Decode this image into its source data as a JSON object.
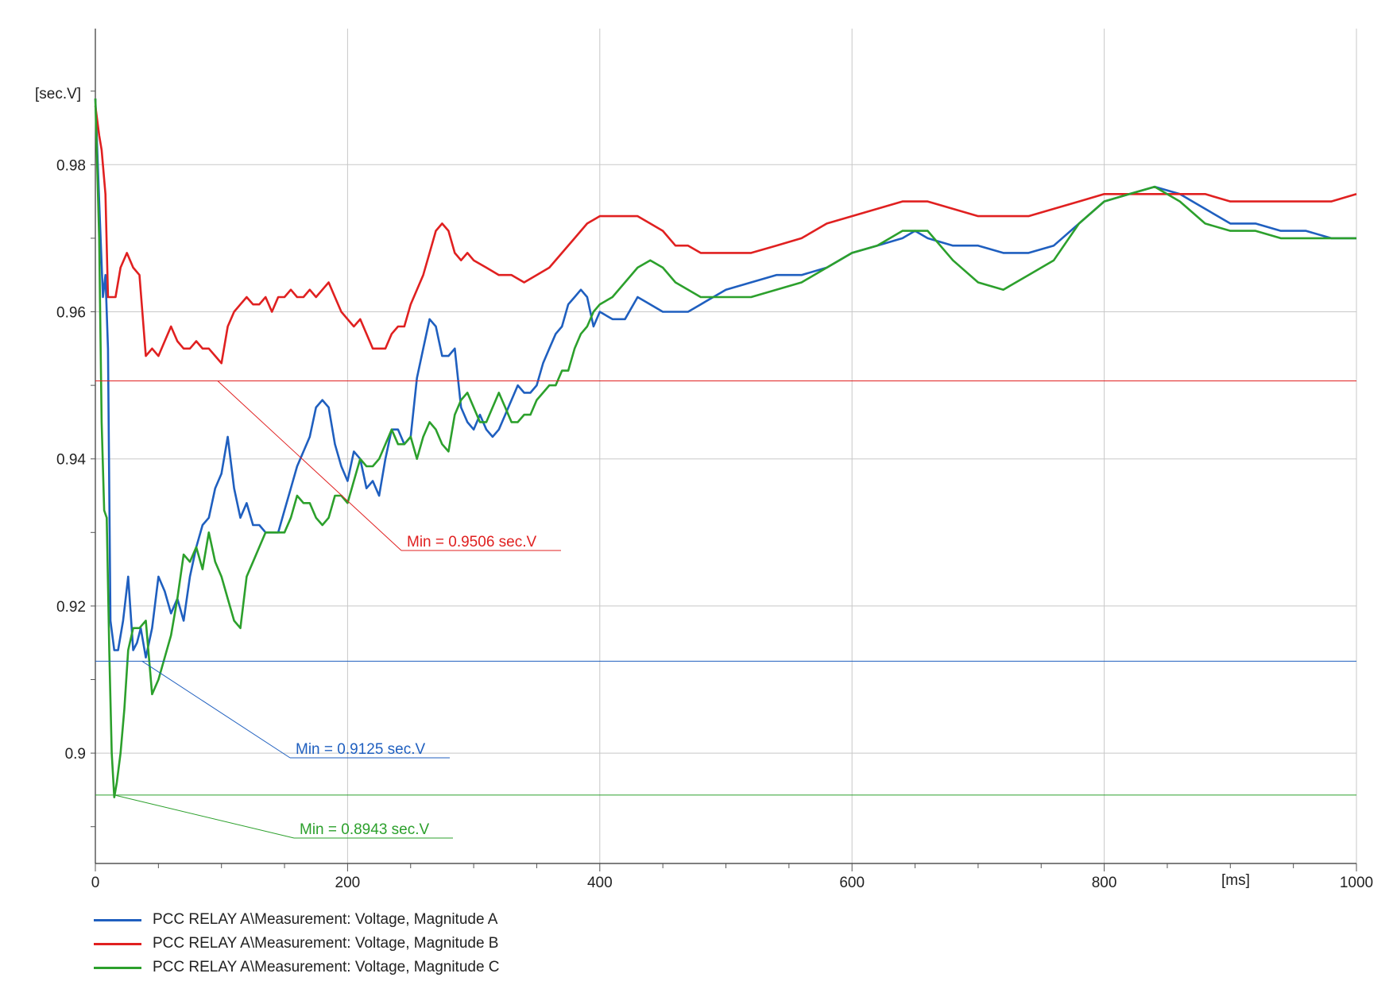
{
  "chart_data": {
    "type": "line",
    "x_unit": "[ms]",
    "y_unit": "[sec.V]",
    "xlim": [
      0,
      1000
    ],
    "ylim": [
      0.885,
      0.9985
    ],
    "x_ticks": [
      0,
      200,
      400,
      600,
      800,
      1000
    ],
    "x_tick_labels": [
      "0",
      "200",
      "400",
      "600",
      "800",
      "1000"
    ],
    "y_ticks": [
      0.9,
      0.92,
      0.94,
      0.96,
      0.98
    ],
    "y_tick_labels": [
      "0.9",
      "0.92",
      "0.94",
      "0.96",
      "0.98"
    ],
    "grid": true,
    "legend_position": "bottom-left",
    "series": [
      {
        "name": "PCC RELAY A\\Measurement: Voltage, Magnitude A",
        "color": "#1f5fbf",
        "x": [
          0,
          3,
          6,
          8,
          10,
          12,
          15,
          18,
          22,
          26,
          30,
          33,
          36,
          40,
          45,
          50,
          55,
          60,
          65,
          70,
          75,
          80,
          85,
          90,
          95,
          100,
          105,
          110,
          115,
          120,
          125,
          130,
          135,
          140,
          145,
          150,
          155,
          160,
          165,
          170,
          175,
          180,
          185,
          190,
          195,
          200,
          205,
          210,
          215,
          220,
          225,
          230,
          235,
          240,
          245,
          250,
          255,
          260,
          265,
          270,
          275,
          280,
          285,
          290,
          295,
          300,
          305,
          310,
          315,
          320,
          325,
          330,
          335,
          340,
          345,
          350,
          355,
          360,
          365,
          370,
          375,
          380,
          385,
          390,
          395,
          400,
          410,
          420,
          430,
          440,
          450,
          460,
          470,
          480,
          490,
          500,
          520,
          540,
          560,
          580,
          600,
          620,
          640,
          650,
          660,
          680,
          700,
          720,
          740,
          760,
          780,
          800,
          820,
          840,
          860,
          880,
          900,
          920,
          940,
          960,
          980,
          1000
        ],
        "values": [
          0.989,
          0.975,
          0.962,
          0.965,
          0.955,
          0.918,
          0.914,
          0.914,
          0.918,
          0.924,
          0.914,
          0.915,
          0.917,
          0.913,
          0.917,
          0.924,
          0.922,
          0.919,
          0.921,
          0.918,
          0.924,
          0.928,
          0.931,
          0.932,
          0.936,
          0.938,
          0.943,
          0.936,
          0.932,
          0.934,
          0.931,
          0.931,
          0.93,
          0.93,
          0.93,
          0.933,
          0.936,
          0.939,
          0.941,
          0.943,
          0.947,
          0.948,
          0.947,
          0.942,
          0.939,
          0.937,
          0.941,
          0.94,
          0.936,
          0.937,
          0.935,
          0.94,
          0.944,
          0.944,
          0.942,
          0.943,
          0.951,
          0.955,
          0.959,
          0.958,
          0.954,
          0.954,
          0.955,
          0.947,
          0.945,
          0.944,
          0.946,
          0.944,
          0.943,
          0.944,
          0.946,
          0.948,
          0.95,
          0.949,
          0.949,
          0.95,
          0.953,
          0.955,
          0.957,
          0.958,
          0.961,
          0.962,
          0.963,
          0.962,
          0.958,
          0.96,
          0.959,
          0.959,
          0.962,
          0.961,
          0.96,
          0.96,
          0.96,
          0.961,
          0.962,
          0.963,
          0.964,
          0.965,
          0.965,
          0.966,
          0.968,
          0.969,
          0.97,
          0.971,
          0.97,
          0.969,
          0.969,
          0.968,
          0.968,
          0.969,
          0.972,
          0.975,
          0.976,
          0.977,
          0.976,
          0.974,
          0.972,
          0.972,
          0.971,
          0.971,
          0.97,
          0.97
        ]
      },
      {
        "name": "PCC RELAY A\\Measurement: Voltage, Magnitude B",
        "color": "#e02020",
        "x": [
          0,
          3,
          5,
          8,
          10,
          13,
          16,
          20,
          25,
          30,
          35,
          40,
          45,
          50,
          55,
          60,
          65,
          70,
          75,
          80,
          85,
          90,
          95,
          100,
          105,
          110,
          115,
          120,
          125,
          130,
          135,
          140,
          145,
          150,
          155,
          160,
          165,
          170,
          175,
          180,
          185,
          190,
          195,
          200,
          205,
          210,
          215,
          220,
          225,
          230,
          235,
          240,
          245,
          250,
          255,
          260,
          265,
          270,
          275,
          280,
          285,
          290,
          295,
          300,
          310,
          320,
          330,
          340,
          350,
          360,
          370,
          380,
          390,
          400,
          410,
          420,
          430,
          440,
          450,
          460,
          470,
          480,
          500,
          520,
          540,
          560,
          580,
          600,
          620,
          640,
          660,
          680,
          700,
          720,
          740,
          760,
          780,
          800,
          820,
          840,
          860,
          880,
          900,
          920,
          940,
          960,
          980,
          1000
        ],
        "values": [
          0.988,
          0.984,
          0.982,
          0.976,
          0.962,
          0.962,
          0.962,
          0.966,
          0.968,
          0.966,
          0.965,
          0.954,
          0.955,
          0.954,
          0.956,
          0.958,
          0.956,
          0.955,
          0.955,
          0.956,
          0.955,
          0.955,
          0.954,
          0.953,
          0.958,
          0.96,
          0.961,
          0.962,
          0.961,
          0.961,
          0.962,
          0.96,
          0.962,
          0.962,
          0.963,
          0.962,
          0.962,
          0.963,
          0.962,
          0.963,
          0.964,
          0.962,
          0.96,
          0.959,
          0.958,
          0.959,
          0.957,
          0.955,
          0.955,
          0.955,
          0.957,
          0.958,
          0.958,
          0.961,
          0.963,
          0.965,
          0.968,
          0.971,
          0.972,
          0.971,
          0.968,
          0.967,
          0.968,
          0.967,
          0.966,
          0.965,
          0.965,
          0.964,
          0.965,
          0.966,
          0.968,
          0.97,
          0.972,
          0.973,
          0.973,
          0.973,
          0.973,
          0.972,
          0.971,
          0.969,
          0.969,
          0.968,
          0.968,
          0.968,
          0.969,
          0.97,
          0.972,
          0.973,
          0.974,
          0.975,
          0.975,
          0.974,
          0.973,
          0.973,
          0.973,
          0.974,
          0.975,
          0.976,
          0.976,
          0.976,
          0.976,
          0.976,
          0.975,
          0.975,
          0.975,
          0.975,
          0.975,
          0.976
        ]
      },
      {
        "name": "PCC RELAY A\\Measurement: Voltage, Magnitude C",
        "color": "#2ca02c",
        "x": [
          0,
          3,
          5,
          7,
          9,
          11,
          13,
          15,
          17,
          20,
          23,
          26,
          30,
          35,
          40,
          45,
          50,
          55,
          60,
          65,
          70,
          75,
          80,
          85,
          90,
          95,
          100,
          105,
          110,
          115,
          120,
          125,
          130,
          135,
          140,
          145,
          150,
          155,
          160,
          165,
          170,
          175,
          180,
          185,
          190,
          195,
          200,
          205,
          210,
          215,
          220,
          225,
          230,
          235,
          240,
          245,
          250,
          255,
          260,
          265,
          270,
          275,
          280,
          285,
          290,
          295,
          300,
          305,
          310,
          315,
          320,
          325,
          330,
          335,
          340,
          345,
          350,
          355,
          360,
          365,
          370,
          375,
          380,
          385,
          390,
          395,
          400,
          410,
          420,
          430,
          440,
          450,
          460,
          470,
          480,
          490,
          500,
          520,
          540,
          560,
          580,
          600,
          620,
          640,
          660,
          680,
          700,
          720,
          740,
          760,
          780,
          800,
          820,
          840,
          860,
          880,
          900,
          920,
          940,
          960,
          980,
          1000
        ],
        "values": [
          0.989,
          0.97,
          0.945,
          0.933,
          0.932,
          0.914,
          0.9,
          0.894,
          0.896,
          0.9,
          0.906,
          0.914,
          0.917,
          0.917,
          0.918,
          0.908,
          0.91,
          0.913,
          0.916,
          0.921,
          0.927,
          0.926,
          0.928,
          0.925,
          0.93,
          0.926,
          0.924,
          0.921,
          0.918,
          0.917,
          0.924,
          0.926,
          0.928,
          0.93,
          0.93,
          0.93,
          0.93,
          0.932,
          0.935,
          0.934,
          0.934,
          0.932,
          0.931,
          0.932,
          0.935,
          0.935,
          0.934,
          0.937,
          0.94,
          0.939,
          0.939,
          0.94,
          0.942,
          0.944,
          0.942,
          0.942,
          0.943,
          0.94,
          0.943,
          0.945,
          0.944,
          0.942,
          0.941,
          0.946,
          0.948,
          0.949,
          0.947,
          0.945,
          0.945,
          0.947,
          0.949,
          0.947,
          0.945,
          0.945,
          0.946,
          0.946,
          0.948,
          0.949,
          0.95,
          0.95,
          0.952,
          0.952,
          0.955,
          0.957,
          0.958,
          0.96,
          0.961,
          0.962,
          0.964,
          0.966,
          0.967,
          0.966,
          0.964,
          0.963,
          0.962,
          0.962,
          0.962,
          0.962,
          0.963,
          0.964,
          0.966,
          0.968,
          0.969,
          0.971,
          0.971,
          0.967,
          0.964,
          0.963,
          0.965,
          0.967,
          0.972,
          0.975,
          0.976,
          0.977,
          0.975,
          0.972,
          0.971,
          0.971,
          0.97,
          0.97,
          0.97,
          0.97
        ]
      }
    ],
    "min_lines": [
      {
        "series": 1,
        "value": 0.9506,
        "x_at_min": 97,
        "color": "#e02020",
        "label": "Min = 0.9506 sec.V"
      },
      {
        "series": 0,
        "value": 0.9125,
        "x_at_min": 37,
        "color": "#1f5fbf",
        "label": "Min = 0.9125 sec.V"
      },
      {
        "series": 2,
        "value": 0.8943,
        "x_at_min": 15,
        "color": "#2ca02c",
        "label": "Min = 0.8943 sec.V"
      }
    ]
  }
}
